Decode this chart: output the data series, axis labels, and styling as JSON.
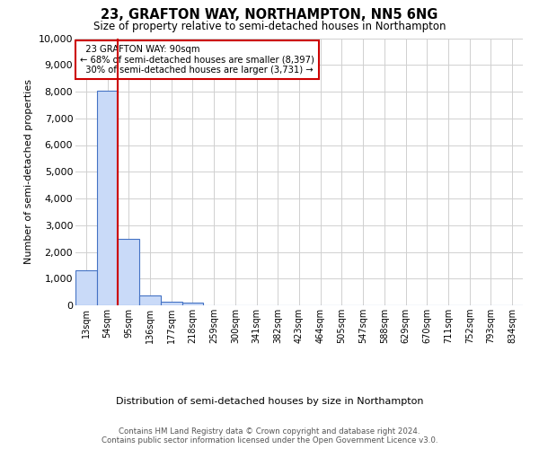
{
  "title": "23, GRAFTON WAY, NORTHAMPTON, NN5 6NG",
  "subtitle": "Size of property relative to semi-detached houses in Northampton",
  "xlabel": "Distribution of semi-detached houses by size in Northampton",
  "ylabel": "Number of semi-detached properties",
  "footer_line1": "Contains HM Land Registry data © Crown copyright and database right 2024.",
  "footer_line2": "Contains public sector information licensed under the Open Government Licence v3.0.",
  "categories": [
    "13sqm",
    "54sqm",
    "95sqm",
    "136sqm",
    "177sqm",
    "218sqm",
    "259sqm",
    "300sqm",
    "341sqm",
    "382sqm",
    "423sqm",
    "464sqm",
    "505sqm",
    "547sqm",
    "588sqm",
    "629sqm",
    "670sqm",
    "711sqm",
    "752sqm",
    "793sqm",
    "834sqm"
  ],
  "values": [
    1300,
    8050,
    2500,
    380,
    150,
    100,
    0,
    0,
    0,
    0,
    0,
    0,
    0,
    0,
    0,
    0,
    0,
    0,
    0,
    0,
    0
  ],
  "bar_color": "#c9daf8",
  "bar_edge_color": "#4472c4",
  "ylim": [
    0,
    10000
  ],
  "yticks": [
    0,
    1000,
    2000,
    3000,
    4000,
    5000,
    6000,
    7000,
    8000,
    9000,
    10000
  ],
  "property_label": "23 GRAFTON WAY: 90sqm",
  "pct_smaller": 68,
  "n_smaller": "8,397",
  "pct_larger": 30,
  "n_larger": "3,731",
  "vline_x_index": 1,
  "annotation_box_color": "#ffffff",
  "annotation_box_edge": "#cc0000",
  "vline_color": "#cc0000",
  "background_color": "#ffffff",
  "grid_color": "#d0d0d0"
}
